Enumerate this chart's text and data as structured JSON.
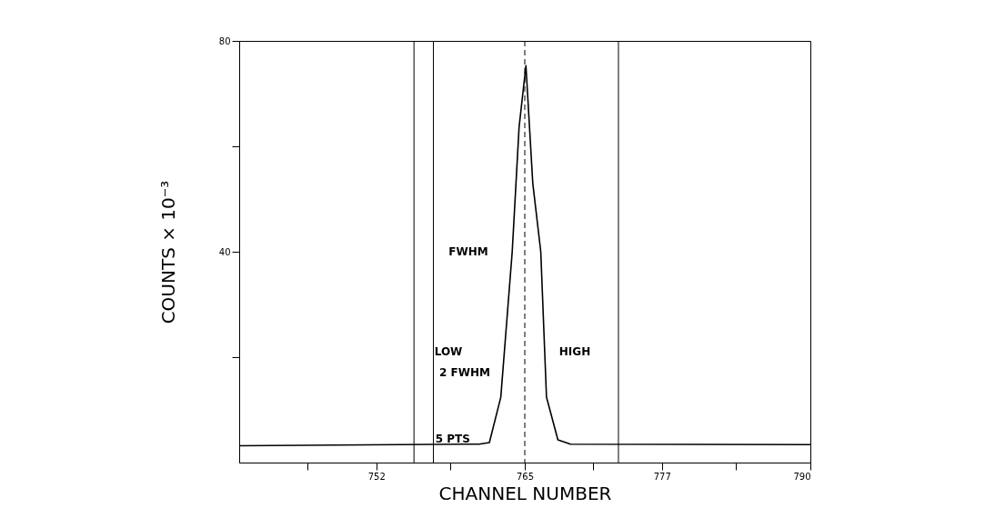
{
  "chart_data": {
    "type": "line",
    "xlabel": "CHANNEL NUMBER",
    "ylabel": "COUNTS × 10⁻³",
    "x": [
      740,
      761.0,
      761.9,
      762.9,
      763.9,
      764.5,
      765.1,
      765.7,
      766.4,
      766.9,
      767.9,
      769,
      790
    ],
    "series": [
      {
        "color": "#000000",
        "values": [
          3.2,
          3.5,
          3.8,
          12.4,
          40,
          63.6,
          75.3,
          53,
          40,
          12.4,
          4.3,
          3.5,
          3.4
        ]
      }
    ],
    "xlim": [
      740,
      790
    ],
    "xticks": [
      {
        "value": 746,
        "label": null
      },
      752,
      {
        "value": 758.5,
        "label": null
      },
      765,
      {
        "value": 771,
        "label": null
      },
      777,
      {
        "value": 783.5,
        "label": null
      },
      790
    ],
    "ylim": [
      0,
      80
    ],
    "yticks": [
      {
        "value": 20,
        "label": null
      },
      40,
      {
        "value": 60,
        "label": null
      },
      80
    ],
    "ref_lines": [
      {
        "axis": "x",
        "value": 755.3,
        "label": null
      },
      {
        "axis": "x",
        "value": 757,
        "label": null
      },
      {
        "axis": "x",
        "value": 765,
        "label": null,
        "line_style": "dashed"
      },
      {
        "axis": "x",
        "value": 773.2,
        "label": null
      }
    ],
    "annotations": [
      "FWHM",
      "LOW",
      "HIGH",
      "2 FWHM",
      {
        "text": "5 PTS",
        "x": 758.7,
        "y": 4.5
      }
    ],
    "grid": false,
    "line_style": "solid",
    "marker": "none"
  }
}
